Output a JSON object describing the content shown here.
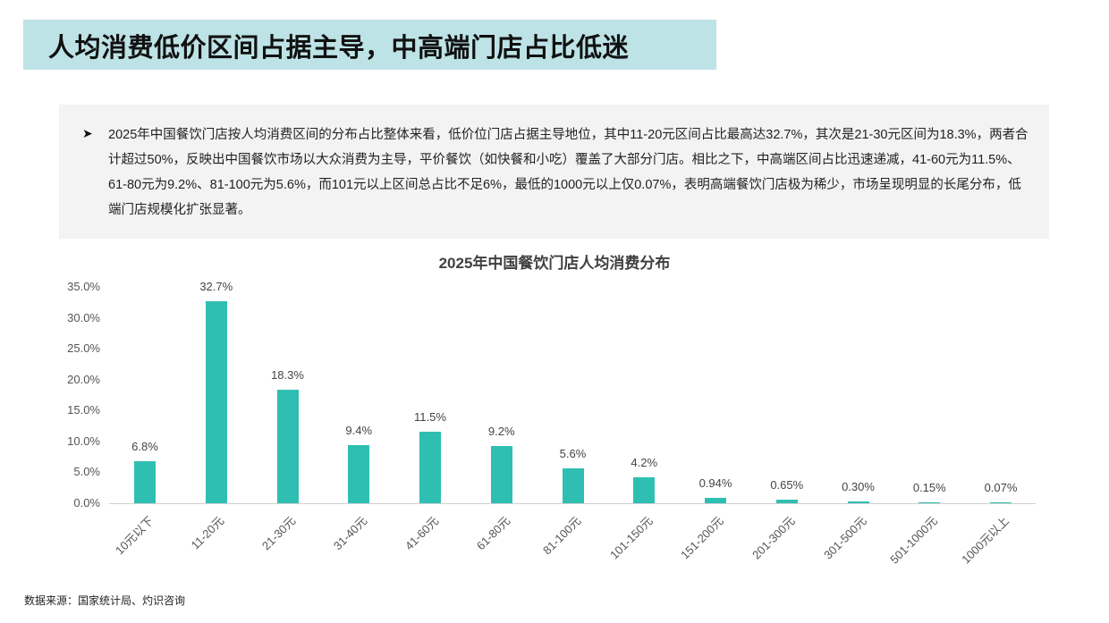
{
  "header": {
    "title": "人均消费低价区间占据主导，中高端门店占比低迷"
  },
  "summary": {
    "bullet_icon": "arrow-bullet-icon",
    "text": "2025年中国餐饮门店按人均消费区间的分布占比整体来看，低价位门店占据主导地位，其中11-20元区间占比最高达32.7%，其次是21-30元区间为18.3%，两者合计超过50%，反映出中国餐饮市场以大众消费为主导，平价餐饮（如快餐和小吃）覆盖了大部分门店。相比之下，中高端区间占比迅速递减，41-60元为11.5%、61-80元为9.2%、81-100元为5.6%，而101元以上区间总占比不足6%，最低的1000元以上仅0.07%，表明高端餐饮门店极为稀少，市场呈现明显的长尾分布，低端门店规模化扩张显著。"
  },
  "chart_data": {
    "type": "bar",
    "title": "2025年中国餐饮门店人均消费分布",
    "xlabel": "",
    "ylabel": "",
    "ylim": [
      0,
      35
    ],
    "y_ticks": [
      "35.0%",
      "30.0%",
      "25.0%",
      "20.0%",
      "15.0%",
      "10.0%",
      "5.0%",
      "0.0%"
    ],
    "grid": false,
    "legend": null,
    "bar_color": "#2fbfb2",
    "categories": [
      "10元以下",
      "11-20元",
      "21-30元",
      "31-40元",
      "41-60元",
      "61-80元",
      "81-100元",
      "101-150元",
      "151-200元",
      "201-300元",
      "301-500元",
      "501-1000元",
      "1000元以上"
    ],
    "values": [
      6.8,
      32.7,
      18.3,
      9.4,
      11.5,
      9.2,
      5.6,
      4.2,
      0.94,
      0.65,
      0.3,
      0.15,
      0.07
    ],
    "data_labels": [
      "6.8%",
      "32.7%",
      "18.3%",
      "9.4%",
      "11.5%",
      "9.2%",
      "5.6%",
      "4.2%",
      "0.94%",
      "0.65%",
      "0.30%",
      "0.15%",
      "0.07%"
    ]
  },
  "footer": {
    "source": "数据来源：国家统计局、灼识咨询"
  }
}
